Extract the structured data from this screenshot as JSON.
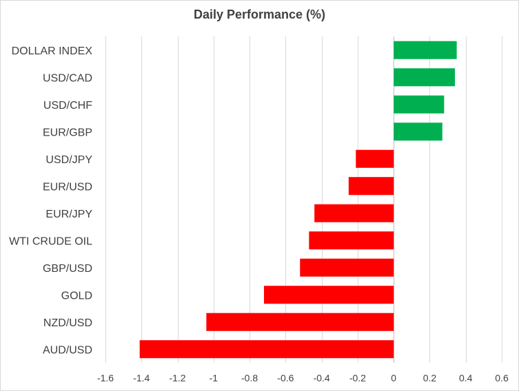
{
  "chart_data": {
    "type": "bar",
    "orientation": "horizontal",
    "title": "Daily Performance (%)",
    "xlabel": "",
    "ylabel": "",
    "categories": [
      "DOLLAR INDEX",
      "USD/CAD",
      "USD/CHF",
      "EUR/GBP",
      "USD/JPY",
      "EUR/USD",
      "EUR/JPY",
      "WTI CRUDE OIL",
      "GBP/USD",
      "GOLD",
      "NZD/USD",
      "AUD/USD"
    ],
    "values": [
      0.35,
      0.34,
      0.28,
      0.27,
      -0.21,
      -0.25,
      -0.44,
      -0.47,
      -0.52,
      -0.72,
      -1.04,
      -1.41
    ],
    "xlim": [
      -1.6,
      0.6
    ],
    "xticks": [
      -1.6,
      -1.4,
      -1.2,
      -1,
      -0.8,
      -0.6,
      -0.4,
      -0.2,
      0,
      0.2,
      0.4,
      0.6
    ],
    "xtick_labels": [
      "-1.6",
      "-1.4",
      "-1.2",
      "-1",
      "-0.8",
      "-0.6",
      "-0.4",
      "-0.2",
      "0",
      "0.2",
      "0.4",
      "0.6"
    ],
    "grid": "vertical",
    "legend": "none",
    "colors": {
      "positive": "#00b050",
      "negative": "#ff0000",
      "grid": "#d9d9d9",
      "axis": "#bfbfbf",
      "text": "#404040"
    }
  }
}
